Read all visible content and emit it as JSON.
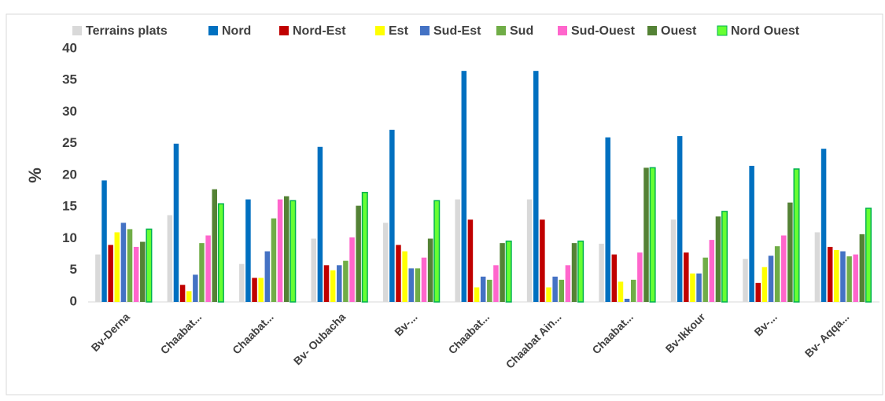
{
  "chart_data": {
    "type": "bar",
    "y_label": "%",
    "categories": [
      "Bv-Derna",
      "Chaabat...",
      "Chaabat...",
      "Bv- Oubacha",
      "Bv-...",
      "Chaabat...",
      "Chaabat Ain...",
      "Chaabat...",
      "Bv-Ikkour",
      "Bv-...",
      "Bv- Aqqa..."
    ],
    "series": [
      {
        "name": "Terrains plats",
        "color": "#d9d9d9",
        "values": [
          7.5,
          13.7,
          6,
          10,
          12.5,
          16.2,
          16.2,
          9.2,
          13,
          6.8,
          11
        ]
      },
      {
        "name": "Nord",
        "color": "#0070c0",
        "values": [
          19.2,
          25,
          16.2,
          24.5,
          27.2,
          36.5,
          36.5,
          26,
          26.2,
          21.5,
          24.2
        ]
      },
      {
        "name": "Nord-Est",
        "color": "#c00000",
        "values": [
          9,
          2.7,
          3.8,
          5.8,
          9,
          13,
          13,
          7.5,
          7.8,
          3,
          8.7
        ]
      },
      {
        "name": "Est",
        "color": "#ffff00",
        "values": [
          11,
          1.7,
          3.8,
          5,
          8,
          2.3,
          2.3,
          3.2,
          4.5,
          5.5,
          8.2
        ]
      },
      {
        "name": "Sud-Est",
        "color": "#4472c4",
        "values": [
          12.5,
          4.3,
          8,
          5.8,
          5.3,
          4,
          4,
          0.5,
          4.5,
          7.3,
          8
        ]
      },
      {
        "name": "Sud",
        "color": "#70ad47",
        "values": [
          11.5,
          9.3,
          13.2,
          6.5,
          5.3,
          3.5,
          3.5,
          3.5,
          7,
          8.8,
          7.2
        ]
      },
      {
        "name": "Sud-Ouest",
        "color": "#ff66cc",
        "values": [
          8.7,
          10.5,
          16.2,
          10.2,
          7,
          5.8,
          5.8,
          7.8,
          9.8,
          10.5,
          7.5
        ]
      },
      {
        "name": "Ouest",
        "color": "#548235",
        "values": [
          9.5,
          17.8,
          16.7,
          15.2,
          10,
          9.3,
          9.3,
          21.2,
          13.5,
          15.7,
          10.7
        ]
      },
      {
        "name": "Nord Ouest",
        "color": "#66ff33",
        "values": [
          11.5,
          15.5,
          16,
          17.3,
          16,
          9.6,
          9.6,
          21.2,
          14.3,
          21,
          14.8
        ]
      }
    ],
    "ylim": [
      0,
      40
    ],
    "yticks": [
      0,
      5,
      10,
      15,
      20,
      25,
      30,
      35,
      40
    ],
    "grid": false
  }
}
